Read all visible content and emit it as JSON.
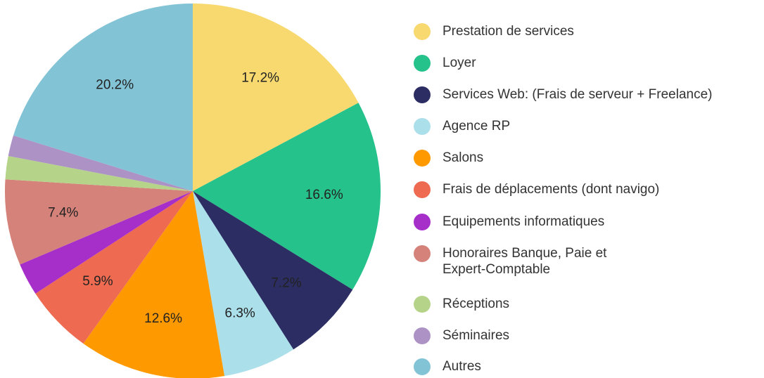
{
  "chart_data": {
    "type": "pie",
    "categories": [
      "Prestation de services",
      "Loyer",
      "Services Web: (Frais de serveur +  Freelance)",
      "Agence RP",
      "Salons",
      "Frais de déplacements (dont navigo)",
      "Equipements informatiques",
      "Honoraires Banque, Paie et\nExpert-Comptable",
      "Réceptions",
      "Séminaires",
      "Autres"
    ],
    "values": [
      17.2,
      16.6,
      7.2,
      6.3,
      12.6,
      5.9,
      2.8,
      7.4,
      2.0,
      1.8,
      20.2
    ],
    "value_labels": [
      "17.2%",
      "16.6%",
      "7.2%",
      "6.3%",
      "12.6%",
      "5.9%",
      null,
      "7.4%",
      null,
      null,
      "20.2%"
    ],
    "colors": [
      "#f7d96f",
      "#26c28c",
      "#2b2d63",
      "#abdfea",
      "#ff9900",
      "#ee6a50",
      "#a62fc9",
      "#d4827a",
      "#b5d48a",
      "#ac92c5",
      "#82c3d6"
    ],
    "legend": "right"
  }
}
